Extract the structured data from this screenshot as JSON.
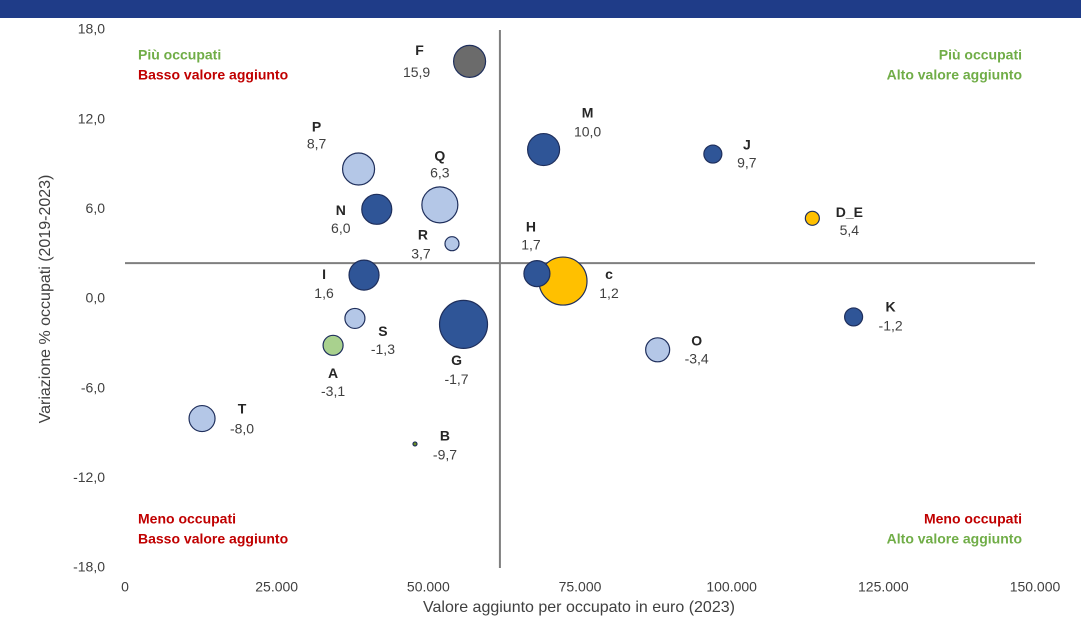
{
  "chart_data": {
    "type": "bubble",
    "xlabel": "Valore aggiunto per occupato in euro (2023)",
    "ylabel": "Variazione % occupati (2019-2023)",
    "xlim": [
      0,
      150000
    ],
    "ylim": [
      -18,
      18
    ],
    "xticks": [
      0,
      {
        "value": 25000,
        "label": "25.000"
      },
      {
        "value": 50000,
        "label": "50.000"
      },
      {
        "value": 75000,
        "label": "75.000"
      },
      {
        "value": 100000,
        "label": "100.000"
      },
      {
        "value": 125000,
        "label": "125.000"
      },
      {
        "value": 150000,
        "label": "150.000"
      }
    ],
    "yticks": [
      {
        "value": 18,
        "label": "18,0"
      },
      {
        "value": 12,
        "label": "12,0"
      },
      {
        "value": 6,
        "label": "6,0"
      },
      {
        "value": 0,
        "label": "0,0"
      },
      {
        "value": -6,
        "label": "-6,0"
      },
      {
        "value": -12,
        "label": "-12,0"
      },
      {
        "value": -18,
        "label": "-18,0"
      }
    ],
    "x_reference": 61800,
    "y_reference": 2.4,
    "reference_color": "#7f7f7f",
    "point_labels": [
      "F",
      "P",
      "Q",
      "N",
      "R",
      "M",
      "J",
      "D_E",
      "H",
      "c",
      "I",
      "S",
      "G",
      "A",
      "O",
      "K",
      "T",
      "B"
    ],
    "x": [
      56800,
      38500,
      51900,
      41500,
      53900,
      69000,
      96900,
      113300,
      67900,
      72200,
      39400,
      37900,
      55800,
      34300,
      87800,
      120100,
      12700,
      47800
    ],
    "values": [
      15.9,
      8.7,
      6.3,
      6.0,
      3.7,
      10.0,
      9.7,
      5.4,
      1.7,
      1.2,
      1.6,
      -1.3,
      -1.7,
      -3.1,
      -3.4,
      -1.2,
      -8.0,
      -9.7
    ],
    "value_labels": [
      "15,9",
      "8,7",
      "6,3",
      "6,0",
      "3,7",
      "10,0",
      "9,7",
      "5,4",
      "1,7",
      "1,2",
      "1,6",
      "-1,3",
      "-1,7",
      "-3,1",
      "-3,4",
      "-1,2",
      "-8,0",
      "-9,7"
    ],
    "sizes": [
      256,
      256,
      324,
      225,
      49,
      256,
      81,
      49,
      169,
      576,
      225,
      100,
      576,
      100,
      144,
      81,
      169,
      4
    ],
    "colors": [
      "#6b6b6b",
      "#b4c7e7",
      "#b4c7e7",
      "#2f5597",
      "#b4c7e7",
      "#2f5597",
      "#2f5597",
      "#ffc000",
      "#2f5597",
      "#ffc000",
      "#2f5597",
      "#b4c7e7",
      "#2f5597",
      "#a9d18e",
      "#b4c7e7",
      "#2f5597",
      "#b4c7e7",
      "#6b8e23"
    ],
    "annotations": [
      {
        "text": "Più occupati",
        "color": "#70ad47"
      },
      {
        "text": "Basso valore aggiunto",
        "color": "#c00000"
      },
      {
        "text": "Più occupati",
        "color": "#70ad47"
      },
      {
        "text": "Alto valore aggiunto",
        "color": "#70ad47"
      },
      {
        "text": "Meno occupati",
        "color": "#c00000"
      },
      {
        "text": "Basso valore aggiunto",
        "color": "#c00000"
      },
      {
        "text": "Meno occupati",
        "color": "#c00000"
      },
      {
        "text": "Alto valore aggiunto",
        "color": "#70ad47"
      }
    ]
  }
}
